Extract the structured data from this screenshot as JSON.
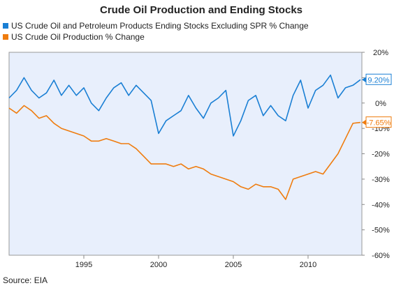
{
  "chart_data": {
    "type": "line",
    "title": "Crude Oil Production and Ending Stocks",
    "source": "Source: EIA",
    "xlabel": "",
    "ylabel": "",
    "x_ticks": [
      "1995",
      "2000",
      "2005",
      "2010"
    ],
    "y_ticks": [
      "20%",
      "10%",
      "0%",
      "-10%",
      "-20%",
      "-30%",
      "-40%",
      "-50%",
      "-60%"
    ],
    "ylim": [
      -60,
      20
    ],
    "xlim": [
      1990.0,
      2013.6
    ],
    "grid": false,
    "legend_position": "top-left",
    "colors": {
      "background": "#e8effc",
      "blue": "#1a7fd4",
      "orange": "#ef7c0e"
    },
    "series": [
      {
        "name": "US Crude Oil and Petroleum Products Ending Stocks Excluding SPR % Change",
        "color": "#1a7fd4",
        "end_label": "9.20%",
        "x": [
          1990.0,
          1990.5,
          1991.0,
          1991.5,
          1992.0,
          1992.5,
          1993.0,
          1993.5,
          1994.0,
          1994.5,
          1995.0,
          1995.5,
          1996.0,
          1996.5,
          1997.0,
          1997.5,
          1998.0,
          1998.5,
          1999.0,
          1999.5,
          2000.0,
          2000.5,
          2001.0,
          2001.5,
          2002.0,
          2002.5,
          2003.0,
          2003.5,
          2004.0,
          2004.5,
          2005.0,
          2005.5,
          2006.0,
          2006.5,
          2007.0,
          2007.5,
          2008.0,
          2008.5,
          2009.0,
          2009.5,
          2010.0,
          2010.5,
          2011.0,
          2011.5,
          2012.0,
          2012.5,
          2013.0,
          2013.5
        ],
        "values": [
          2,
          5,
          10,
          5,
          2,
          4,
          9,
          3,
          7,
          3,
          6,
          0,
          -3,
          2,
          6,
          8,
          3,
          7,
          4,
          1,
          -12,
          -7,
          -5,
          -3,
          3,
          -2,
          -6,
          0,
          2,
          5,
          -13,
          -7,
          1,
          3,
          -5,
          -1,
          -5,
          -7,
          3,
          9,
          -2,
          5,
          7,
          11,
          2,
          6,
          7,
          9.2
        ]
      },
      {
        "name": "US Crude Oil Production % Change",
        "color": "#ef7c0e",
        "end_label": "-7.65%",
        "x": [
          1990.0,
          1990.5,
          1991.0,
          1991.5,
          1992.0,
          1992.5,
          1993.0,
          1993.5,
          1994.0,
          1994.5,
          1995.0,
          1995.5,
          1996.0,
          1996.5,
          1997.0,
          1997.5,
          1998.0,
          1998.5,
          1999.0,
          1999.5,
          2000.0,
          2000.5,
          2001.0,
          2001.5,
          2002.0,
          2002.5,
          2003.0,
          2003.5,
          2004.0,
          2004.5,
          2005.0,
          2005.5,
          2006.0,
          2006.5,
          2007.0,
          2007.5,
          2008.0,
          2008.5,
          2009.0,
          2009.5,
          2010.0,
          2010.5,
          2011.0,
          2011.5,
          2012.0,
          2012.5,
          2013.0,
          2013.5
        ],
        "values": [
          -2,
          -4,
          -1,
          -3,
          -6,
          -5,
          -8,
          -10,
          -11,
          -12,
          -13,
          -15,
          -15,
          -14,
          -15,
          -16,
          -16,
          -18,
          -21,
          -24,
          -24,
          -24,
          -25,
          -24,
          -26,
          -25,
          -26,
          -28,
          -29,
          -30,
          -31,
          -33,
          -34,
          -32,
          -33,
          -33,
          -34,
          -38,
          -30,
          -29,
          -28,
          -27,
          -28,
          -24,
          -20,
          -14,
          -8,
          -7.65
        ]
      }
    ]
  }
}
